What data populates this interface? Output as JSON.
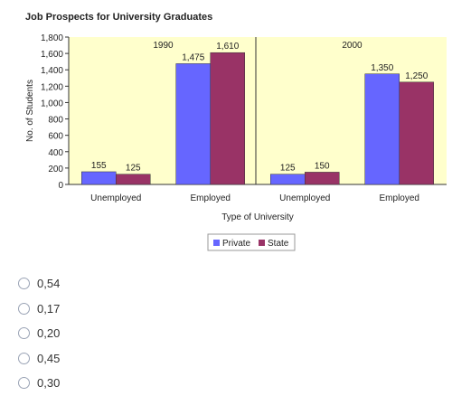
{
  "chart_data": {
    "type": "bar",
    "title": "Job Prospects for University  Graduates",
    "xlabel": "Type of University",
    "ylabel": "No. of Students",
    "ylim": [
      0,
      1800
    ],
    "yticks": [
      0,
      200,
      400,
      600,
      800,
      1000,
      1200,
      1400,
      1600,
      1800
    ],
    "ytick_labels": [
      "0",
      "200",
      "400",
      "600",
      "800",
      "1,000",
      "1,200",
      "1,400",
      "1,600",
      "1,800"
    ],
    "categories": [
      "Unemployed",
      "Employed",
      "Unemployed",
      "Employed"
    ],
    "groups": [
      "1990",
      "1990",
      "2000",
      "2000"
    ],
    "group_labels": [
      "1990",
      "2000"
    ],
    "series": [
      {
        "name": "Private",
        "color": "#6666ff",
        "values": [
          155,
          1475,
          125,
          1350
        ],
        "labels": [
          "155",
          "1,475",
          "125",
          "1,350"
        ]
      },
      {
        "name": "State",
        "color": "#993366",
        "values": [
          125,
          1610,
          150,
          1250
        ],
        "labels": [
          "125",
          "1,610",
          "150",
          "1,250"
        ]
      }
    ],
    "plot_background": "#ffffcc",
    "grid": false,
    "legend_position": "bottom"
  },
  "answers": [
    {
      "label": "0,54"
    },
    {
      "label": "0,17"
    },
    {
      "label": "0,20"
    },
    {
      "label": "0,45"
    },
    {
      "label": "0,30"
    }
  ]
}
